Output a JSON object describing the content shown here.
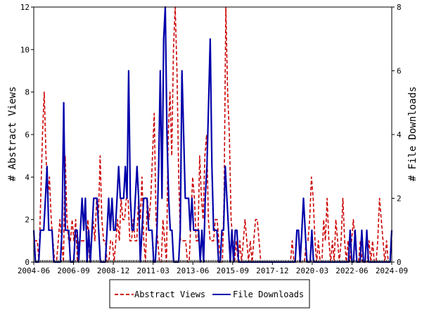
{
  "chart_data": {
    "type": "line",
    "x_tick_labels": [
      "2004-06",
      "2006-09",
      "2008-12",
      "2011-03",
      "2013-06",
      "2015-09",
      "2017-12",
      "2020-03",
      "2022-06",
      "2024-09"
    ],
    "left_axis": {
      "label": "# Abstract Views",
      "ylim": [
        0,
        12
      ],
      "ticks": [
        "0",
        "2",
        "4",
        "6",
        "8",
        "10",
        "12"
      ]
    },
    "right_axis": {
      "label": "# File Downloads",
      "ylim": [
        0,
        8
      ],
      "ticks": [
        "0",
        "2",
        "4",
        "6",
        "8"
      ]
    },
    "legend_position": "bottom-center",
    "series": [
      {
        "name": "Abstract Views",
        "axis": "left",
        "color": "#cc0000",
        "style": "dashed",
        "values": [
          1,
          1,
          1,
          0,
          3,
          6,
          8,
          5,
          3,
          4,
          2,
          1,
          0,
          0,
          1,
          2,
          1,
          0,
          5,
          2,
          1,
          1,
          2,
          1,
          2,
          0,
          1,
          1,
          1,
          1,
          1,
          2,
          0,
          1,
          2,
          1,
          3,
          2,
          5,
          2,
          1,
          1,
          0,
          0,
          1,
          1,
          0,
          1,
          2,
          1,
          3,
          2,
          2,
          3,
          3,
          1,
          1,
          2,
          1,
          1,
          3,
          2,
          4,
          1,
          0,
          3,
          2,
          3,
          5,
          7,
          2,
          1,
          0,
          0,
          2,
          1,
          0,
          6,
          8,
          5,
          10,
          12,
          9,
          4,
          1,
          1,
          1,
          1,
          0,
          0,
          2,
          4,
          3,
          1,
          1,
          5,
          3,
          2,
          5,
          6,
          2,
          1,
          1,
          1,
          2,
          2,
          1,
          0,
          0,
          3,
          12,
          8,
          6,
          2,
          1,
          0,
          1,
          0,
          1,
          0,
          1,
          2,
          1,
          0,
          1,
          0,
          1,
          2,
          2,
          1,
          0,
          0,
          0,
          0,
          0,
          0,
          0,
          0,
          0,
          0,
          0,
          0,
          0,
          0,
          0,
          0,
          0,
          0,
          1,
          0,
          0,
          0,
          0,
          0,
          0,
          0,
          1,
          1,
          2,
          4,
          3,
          1,
          0,
          1,
          0,
          0,
          2,
          1,
          3,
          1,
          0,
          1,
          0,
          2,
          1,
          0,
          1,
          3,
          1,
          0,
          1,
          0,
          1,
          2,
          1,
          0,
          0,
          1,
          0,
          0,
          0,
          0,
          1,
          0,
          1,
          0,
          0,
          1,
          3,
          2,
          1,
          0,
          1,
          0,
          0,
          1
        ]
      },
      {
        "name": "File Downloads",
        "axis": "right",
        "color": "#0000aa",
        "style": "solid",
        "values": [
          1,
          0,
          0,
          0,
          1,
          1,
          1,
          2,
          3,
          1,
          1,
          1,
          0,
          0,
          0,
          0,
          0,
          1,
          5,
          1,
          1,
          1,
          0,
          0,
          0,
          1,
          1,
          0,
          1,
          2,
          1,
          2,
          0,
          1,
          0,
          1,
          2,
          2,
          2,
          1,
          0,
          0,
          0,
          0,
          1,
          2,
          1,
          2,
          1,
          1,
          2,
          3,
          2,
          2,
          2,
          3,
          2,
          6,
          2,
          1,
          1,
          2,
          3,
          2,
          0,
          1,
          2,
          2,
          2,
          1,
          1,
          1,
          0,
          0,
          1,
          3,
          6,
          2,
          7,
          8,
          4,
          2,
          1,
          1,
          0,
          0,
          0,
          0,
          1,
          6,
          4,
          2,
          2,
          2,
          1,
          2,
          1,
          1,
          1,
          1,
          0,
          1,
          0,
          2,
          3,
          5,
          7,
          3,
          1,
          1,
          1,
          0,
          0,
          1,
          1,
          3,
          2,
          1,
          0,
          1,
          0,
          1,
          1,
          0,
          0,
          0,
          0,
          0,
          0,
          0,
          0,
          0,
          0,
          0,
          0,
          0,
          0,
          0,
          0,
          0,
          0,
          0,
          0,
          0,
          0,
          0,
          0,
          0,
          0,
          0,
          0,
          0,
          0,
          0,
          0,
          0,
          0,
          0,
          1,
          1,
          0,
          1,
          2,
          1,
          0,
          0,
          0,
          1,
          0,
          0,
          0,
          0,
          0,
          0,
          0,
          0,
          0,
          0,
          0,
          0,
          0,
          0,
          0,
          0,
          0,
          0,
          0,
          0,
          0,
          0,
          1,
          0,
          0,
          1,
          0,
          0,
          0,
          1,
          0,
          0,
          1,
          0,
          0,
          0,
          0,
          0,
          0,
          0,
          0,
          0,
          0,
          0,
          0,
          0,
          0,
          1
        ]
      }
    ]
  }
}
